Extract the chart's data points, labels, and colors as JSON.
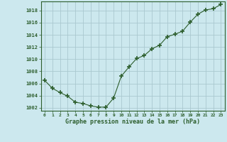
{
  "x": [
    0,
    1,
    2,
    3,
    4,
    5,
    6,
    7,
    8,
    9,
    10,
    11,
    12,
    13,
    14,
    15,
    16,
    17,
    18,
    19,
    20,
    21,
    22,
    23
  ],
  "y": [
    1006.5,
    1005.2,
    1004.5,
    1003.9,
    1002.9,
    1002.7,
    1002.3,
    1002.1,
    1002.1,
    1003.6,
    1007.2,
    1008.7,
    1010.1,
    1010.6,
    1011.7,
    1012.3,
    1013.7,
    1014.1,
    1014.6,
    1016.1,
    1017.4,
    1018.1,
    1018.3,
    1019.0
  ],
  "ylim": [
    1001.5,
    1019.5
  ],
  "yticks": [
    1002,
    1004,
    1006,
    1008,
    1010,
    1012,
    1014,
    1016,
    1018
  ],
  "xlabel": "Graphe pression niveau de la mer (hPa)",
  "line_color": "#2d5e2d",
  "marker_color": "#2d5e2d",
  "bg_color": "#cce8ee",
  "grid_color": "#aac8cf",
  "spine_color": "#2d5e2d",
  "tick_color": "#2d5e2d",
  "label_color": "#2d5e2d"
}
